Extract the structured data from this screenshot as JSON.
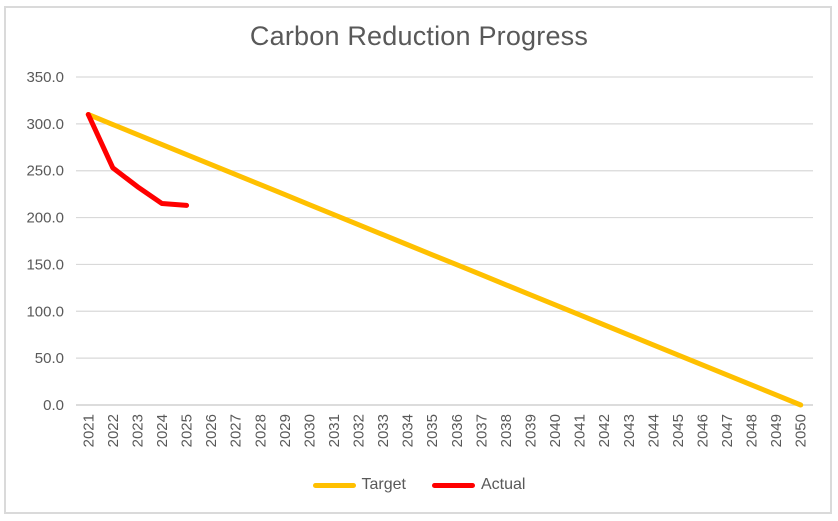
{
  "chart_data": {
    "type": "line",
    "title": "Carbon Reduction Progress",
    "xlabel": "",
    "ylabel": "",
    "ylim": [
      0,
      350
    ],
    "y_ticks": [
      "0.0",
      "50.0",
      "100.0",
      "150.0",
      "200.0",
      "250.0",
      "300.0",
      "350.0"
    ],
    "grid": true,
    "legend_position": "bottom",
    "x_label_rotation": -90,
    "x_categories": [
      "2021",
      "2022",
      "2023",
      "2024",
      "2025",
      "2026",
      "2027",
      "2028",
      "2029",
      "2030",
      "2031",
      "2032",
      "2033",
      "2034",
      "2035",
      "2036",
      "2037",
      "2038",
      "2039",
      "2040",
      "2041",
      "2042",
      "2043",
      "2044",
      "2045",
      "2046",
      "2047",
      "2048",
      "2049",
      "2050"
    ],
    "series": [
      {
        "name": "Target",
        "color": "#FFC000",
        "values": [
          310.0,
          299.3,
          288.6,
          277.9,
          267.2,
          256.6,
          245.9,
          235.2,
          224.5,
          213.8,
          203.1,
          192.4,
          181.7,
          171.0,
          160.3,
          149.7,
          139.0,
          128.3,
          117.6,
          106.9,
          96.2,
          85.5,
          74.8,
          64.1,
          53.4,
          42.8,
          32.1,
          21.4,
          10.7,
          0.0
        ]
      },
      {
        "name": "Actual",
        "color": "#FF0000",
        "values": [
          310,
          253,
          233,
          215,
          213
        ]
      }
    ],
    "colors": {
      "gridline": "#D9D9D9",
      "axis_line": "#D0D0D0",
      "axis_text": "#595959",
      "title": "#595959",
      "legend_text": "#595959",
      "frame_border": "#DADADA",
      "background": "#FFFFFF"
    }
  }
}
